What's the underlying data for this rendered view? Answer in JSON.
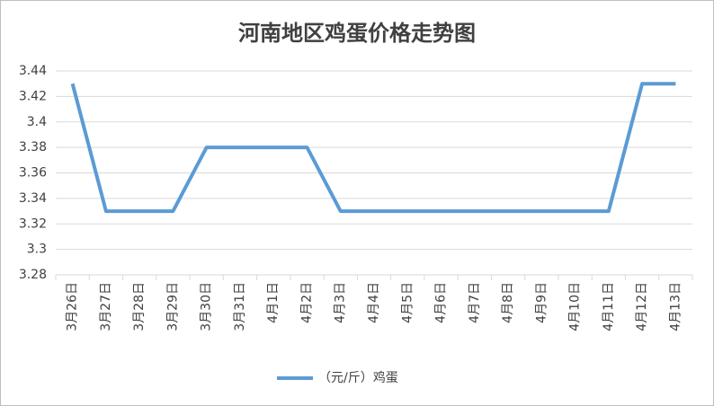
{
  "chart_data": {
    "type": "line",
    "title": "河南地区鸡蛋价格走势图",
    "categories": [
      "3月26日",
      "3月27日",
      "3月28日",
      "3月29日",
      "3月30日",
      "3月31日",
      "4月1日",
      "4月2日",
      "4月3日",
      "4月4日",
      "4月5日",
      "4月6日",
      "4月7日",
      "4月8日",
      "4月9日",
      "4月10日",
      "4月11日",
      "4月12日",
      "4月13日"
    ],
    "series": [
      {
        "name": "（元/斤）鸡蛋",
        "color": "#5b9bd5",
        "values": [
          3.43,
          3.33,
          3.33,
          3.33,
          3.38,
          3.38,
          3.38,
          3.38,
          3.33,
          3.33,
          3.33,
          3.33,
          3.33,
          3.33,
          3.33,
          3.33,
          3.33,
          3.43,
          3.43
        ]
      }
    ],
    "ylim": [
      3.28,
      3.44
    ],
    "yticks": [
      3.28,
      3.3,
      3.32,
      3.34,
      3.36,
      3.38,
      3.4,
      3.42,
      3.44
    ],
    "grid": true,
    "legend": "bottom"
  }
}
